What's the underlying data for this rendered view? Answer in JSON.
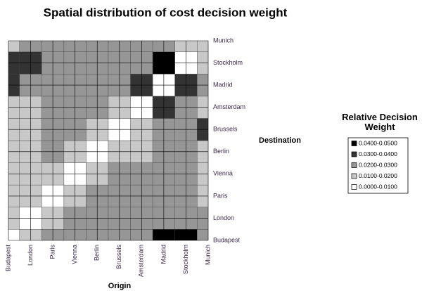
{
  "chart_data": {
    "type": "contour",
    "title": "Spatial distribution of cost decision weight",
    "x_label": "Origin",
    "y_label": "Destination",
    "categories": [
      "Budapest",
      "London",
      "Paris",
      "Vienna",
      "Berlin",
      "Brussels",
      "Amsterdam",
      "Madrid",
      "Stockholm",
      "Munich"
    ],
    "y_categories": [
      "Budapest",
      "London",
      "Paris",
      "Vienna",
      "Berlin",
      "Brussels",
      "Amsterdam",
      "Madrid",
      "Stockholm",
      "Munich"
    ],
    "z": [
      [
        0.008,
        0.015,
        0.025,
        0.025,
        0.025,
        0.025,
        0.028,
        0.045,
        0.045,
        0.025
      ],
      [
        0.018,
        0.005,
        0.015,
        0.022,
        0.025,
        0.025,
        0.025,
        0.028,
        0.028,
        0.022
      ],
      [
        0.015,
        0.015,
        0.005,
        0.015,
        0.025,
        0.025,
        0.025,
        0.022,
        0.022,
        0.015
      ],
      [
        0.015,
        0.015,
        0.015,
        0.005,
        0.015,
        0.022,
        0.025,
        0.025,
        0.022,
        0.015
      ],
      [
        0.015,
        0.015,
        0.022,
        0.015,
        0.005,
        0.015,
        0.015,
        0.022,
        0.022,
        0.015
      ],
      [
        0.015,
        0.015,
        0.022,
        0.022,
        0.015,
        0.005,
        0.015,
        0.022,
        0.025,
        0.035
      ],
      [
        0.015,
        0.015,
        0.025,
        0.025,
        0.025,
        0.015,
        0.005,
        0.035,
        0.025,
        0.015
      ],
      [
        0.035,
        0.025,
        0.025,
        0.025,
        0.025,
        0.025,
        0.035,
        0.005,
        0.035,
        0.025
      ],
      [
        0.035,
        0.035,
        0.025,
        0.025,
        0.025,
        0.025,
        0.025,
        0.045,
        0.005,
        0.015
      ],
      [
        0.015,
        0.025,
        0.025,
        0.025,
        0.025,
        0.025,
        0.025,
        0.025,
        0.015,
        0.015
      ]
    ],
    "levels": [
      0,
      0.01,
      0.02,
      0.03,
      0.04,
      0.05
    ],
    "legend_title": "Relative Decision Weight",
    "legend": [
      {
        "label": "0.0400-0.0500",
        "color": "#000000"
      },
      {
        "label": "0.0300-0.0400",
        "color": "#333333"
      },
      {
        "label": "0.0200-0.0300",
        "color": "#969696"
      },
      {
        "label": "0.0100-0.0200",
        "color": "#c8c8c8"
      },
      {
        "label": "0.0000-0.0100",
        "color": "#ffffff"
      }
    ],
    "grid": true
  }
}
